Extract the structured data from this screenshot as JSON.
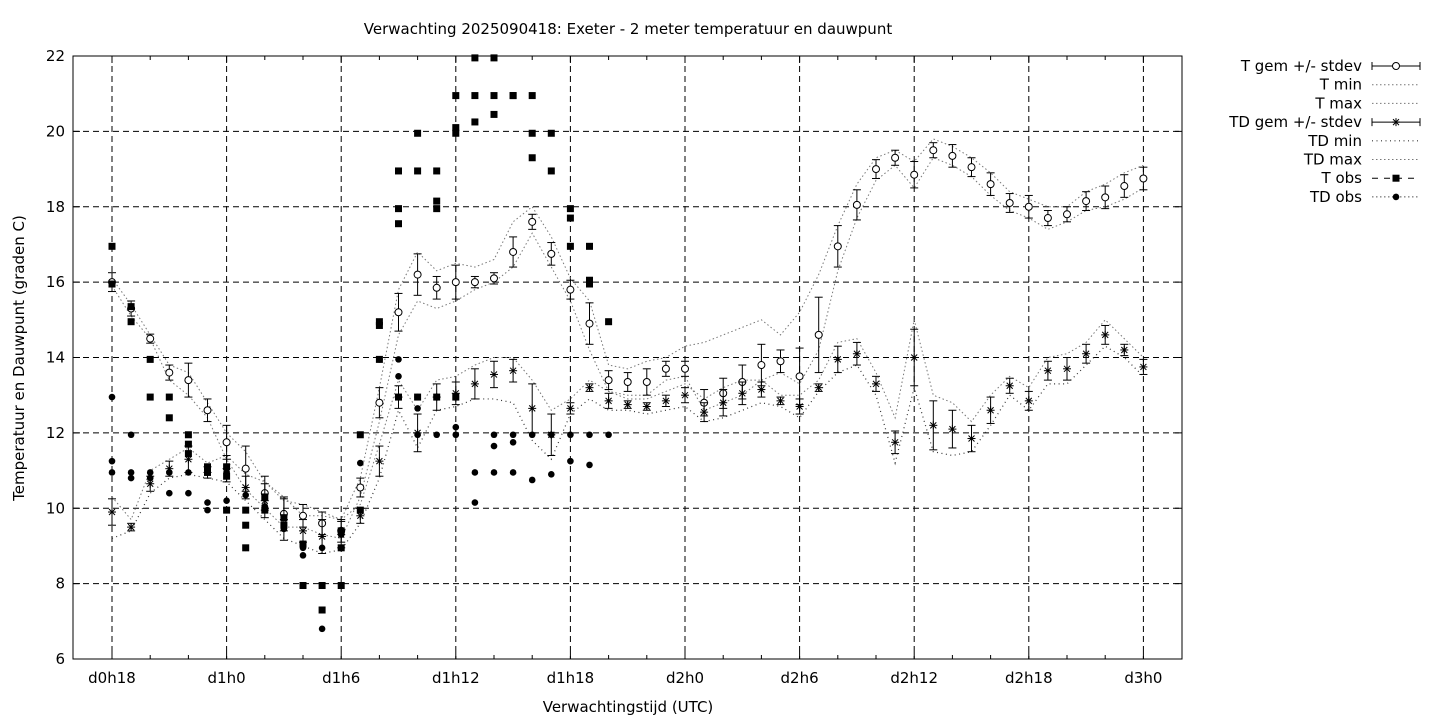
{
  "chart_data": {
    "type": "scatter",
    "title": "Verwachting 2025090418: Exeter - 2 meter temperatuur en dauwpunt",
    "xlabel": "Verwachtingstijd (UTC)",
    "ylabel": "Temperatuur en Dauwpunt (graden C)",
    "ylim": [
      6,
      22
    ],
    "xlim": [
      -1.5,
      27.5
    ],
    "x_unit": "hours since d0h18",
    "grid": true,
    "legend_position": "outside-right",
    "y_ticks": [
      6,
      8,
      10,
      12,
      14,
      16,
      18,
      20,
      22
    ],
    "x_ticks": [
      {
        "x": 0,
        "label": "d0h18"
      },
      {
        "x": 3,
        "label": "d1h0"
      },
      {
        "x": 6,
        "label": "d1h6"
      },
      {
        "x": 9,
        "label": "d1h12"
      },
      {
        "x": 12,
        "label": "d1h18"
      },
      {
        "x": 15,
        "label": "d2h0"
      },
      {
        "x": 18,
        "label": "d2h6"
      },
      {
        "x": 21,
        "label": "d2h12"
      },
      {
        "x": 24,
        "label": "d2h18"
      },
      {
        "x": 27,
        "label": "d3h0"
      }
    ],
    "legend": [
      "T gem +/- stdev",
      "T min",
      "T max",
      "TD gem +/- stdev",
      "TD min",
      "TD max",
      "T obs",
      "TD obs"
    ],
    "forecast_x": [
      0,
      0.5,
      1,
      1.5,
      2,
      2.5,
      3,
      3.5,
      4,
      4.5,
      5,
      5.5,
      6,
      6.5,
      7,
      7.5,
      8,
      8.5,
      9,
      9.5,
      10,
      10.5,
      11,
      11.5,
      12,
      12.5,
      13,
      13.5,
      14,
      14.5,
      15,
      15.5,
      16,
      16.5,
      17,
      17.5,
      18,
      18.5,
      19,
      19.5,
      20,
      20.5,
      21,
      21.5,
      22,
      22.5,
      23,
      23.5,
      24,
      24.5,
      25,
      25.5,
      26,
      26.5,
      27
    ],
    "series": [
      {
        "name": "T gem +/- stdev",
        "mean": [
          16.0,
          15.3,
          14.5,
          13.6,
          13.4,
          12.6,
          11.75,
          11.05,
          10.4,
          9.85,
          9.8,
          9.6,
          9.4,
          10.55,
          12.8,
          15.2,
          16.2,
          15.85,
          16.0,
          16.0,
          16.1,
          16.8,
          17.6,
          16.75,
          15.8,
          14.9,
          13.4,
          13.35,
          13.35,
          13.7,
          13.7,
          12.8,
          13.05,
          13.35,
          13.8,
          13.9,
          13.5,
          14.6,
          16.95,
          18.05,
          19.0,
          19.3,
          18.85,
          19.5,
          19.35,
          19.05,
          18.6,
          18.1,
          18.0,
          17.7,
          17.8,
          18.15,
          18.25,
          18.55,
          18.75
        ],
        "stdev": [
          0.25,
          0.2,
          0.12,
          0.2,
          0.45,
          0.3,
          0.45,
          0.6,
          0.45,
          0.45,
          0.3,
          0.3,
          0.3,
          0.25,
          0.4,
          0.5,
          0.55,
          0.3,
          0.45,
          0.15,
          0.15,
          0.4,
          0.2,
          0.3,
          0.25,
          0.55,
          0.25,
          0.25,
          0.35,
          0.2,
          0.2,
          0.35,
          0.4,
          0.45,
          0.55,
          0.3,
          0.75,
          1.0,
          0.55,
          0.4,
          0.25,
          0.2,
          0.35,
          0.2,
          0.3,
          0.25,
          0.3,
          0.25,
          0.3,
          0.2,
          0.2,
          0.25,
          0.3,
          0.3,
          0.3
        ]
      },
      {
        "name": "T min",
        "values": [
          15.9,
          15.1,
          14.5,
          13.4,
          13.0,
          12.4,
          11.3,
          10.5,
          10.0,
          9.5,
          9.5,
          9.3,
          9.2,
          10.3,
          12.3,
          14.6,
          15.5,
          15.3,
          15.5,
          15.8,
          16.0,
          16.4,
          17.3,
          16.4,
          15.5,
          14.2,
          13.1,
          13.0,
          13.0,
          13.4,
          13.5,
          12.6,
          12.8,
          13.0,
          13.4,
          13.6,
          13.3,
          14.2,
          16.3,
          17.7,
          18.7,
          19.1,
          18.5,
          19.3,
          19.1,
          18.8,
          18.3,
          17.9,
          17.7,
          17.4,
          17.6,
          17.9,
          18.0,
          18.2,
          18.5
        ]
      },
      {
        "name": "T max",
        "values": [
          16.1,
          15.4,
          14.6,
          13.8,
          13.6,
          12.8,
          12.0,
          11.5,
          10.7,
          10.2,
          10.1,
          9.9,
          9.7,
          10.8,
          13.2,
          15.8,
          16.8,
          16.3,
          16.5,
          16.4,
          16.6,
          17.6,
          18.0,
          17.2,
          16.1,
          15.5,
          13.8,
          13.7,
          13.9,
          14.0,
          14.3,
          14.4,
          14.6,
          14.8,
          15.0,
          14.6,
          15.2,
          16.2,
          17.5,
          18.6,
          19.3,
          19.5,
          19.2,
          19.8,
          19.6,
          19.3,
          18.9,
          18.4,
          18.2,
          18.0,
          18.0,
          18.4,
          18.6,
          18.9,
          19.1
        ]
      },
      {
        "name": "TD gem +/- stdev",
        "mean": [
          9.9,
          9.5,
          10.65,
          11.05,
          11.3,
          10.95,
          11.05,
          10.55,
          10.2,
          9.7,
          9.4,
          9.25,
          9.3,
          9.8,
          11.25,
          12.95,
          12.0,
          12.95,
          13.05,
          13.3,
          13.55,
          13.65,
          12.65,
          11.95,
          12.65,
          13.2,
          12.85,
          12.75,
          12.7,
          12.85,
          13.0,
          12.55,
          12.8,
          13.05,
          13.15,
          12.85,
          12.7,
          13.2,
          13.95,
          14.1,
          13.3,
          11.75,
          14.0,
          12.2,
          12.1,
          11.85,
          12.6,
          13.25,
          12.85,
          13.65,
          13.7,
          14.1,
          14.6,
          14.2,
          13.75
        ],
        "stdev": [
          0.35,
          0.1,
          0.2,
          0.2,
          0.35,
          0.15,
          0.35,
          0.3,
          0.45,
          0.55,
          0.3,
          0.45,
          0.35,
          0.2,
          0.4,
          0.3,
          0.5,
          0.35,
          0.3,
          0.4,
          0.35,
          0.3,
          0.65,
          0.55,
          0.15,
          0.1,
          0.2,
          0.1,
          0.1,
          0.15,
          0.2,
          0.25,
          0.35,
          0.3,
          0.2,
          0.1,
          0.2,
          0.1,
          0.35,
          0.3,
          0.2,
          0.3,
          0.75,
          0.65,
          0.5,
          0.35,
          0.35,
          0.2,
          0.25,
          0.25,
          0.3,
          0.25,
          0.25,
          0.15,
          0.2
        ]
      },
      {
        "name": "TD min",
        "values": [
          9.2,
          9.4,
          10.4,
          10.8,
          10.9,
          10.8,
          10.7,
          10.2,
          9.7,
          9.2,
          9.0,
          8.8,
          8.9,
          9.6,
          10.8,
          12.6,
          11.6,
          12.6,
          12.7,
          12.9,
          12.9,
          12.8,
          11.8,
          11.3,
          12.5,
          12.9,
          12.6,
          12.6,
          12.5,
          12.6,
          12.7,
          12.3,
          12.4,
          12.6,
          12.8,
          12.7,
          12.4,
          13.1,
          13.6,
          13.8,
          13.0,
          11.2,
          13.2,
          11.5,
          11.4,
          11.5,
          12.2,
          13.0,
          12.6,
          13.3,
          13.3,
          13.8,
          14.3,
          14.0,
          13.5
        ]
      },
      {
        "name": "TD max",
        "values": [
          10.3,
          9.7,
          11.0,
          11.3,
          11.6,
          11.2,
          11.4,
          10.9,
          10.7,
          10.3,
          9.8,
          9.8,
          9.7,
          10.1,
          11.7,
          13.4,
          12.6,
          13.4,
          13.5,
          13.8,
          14.0,
          14.0,
          13.4,
          12.6,
          12.9,
          13.4,
          13.1,
          12.9,
          12.9,
          13.1,
          13.3,
          12.9,
          13.2,
          13.4,
          13.4,
          13.0,
          13.0,
          13.4,
          14.4,
          14.5,
          13.6,
          12.4,
          15.0,
          13.0,
          12.8,
          12.3,
          13.0,
          13.5,
          13.2,
          14.0,
          14.1,
          14.4,
          15.0,
          14.5,
          14.0
        ]
      },
      {
        "name": "T obs",
        "points": [
          [
            0,
            16.95
          ],
          [
            0,
            15.95
          ],
          [
            0.5,
            15.35
          ],
          [
            0.5,
            14.95
          ],
          [
            1,
            13.95
          ],
          [
            1,
            12.95
          ],
          [
            1.5,
            12.95
          ],
          [
            1.5,
            12.4
          ],
          [
            2,
            11.95
          ],
          [
            2,
            11.7
          ],
          [
            2,
            11.45
          ],
          [
            2.5,
            11.1
          ],
          [
            2.5,
            10.95
          ],
          [
            3,
            11.1
          ],
          [
            3,
            10.85
          ],
          [
            3,
            9.95
          ],
          [
            3.5,
            9.95
          ],
          [
            3.5,
            9.55
          ],
          [
            3.5,
            8.95
          ],
          [
            4,
            10.3
          ],
          [
            4,
            9.95
          ],
          [
            4.5,
            9.75
          ],
          [
            4.5,
            9.55
          ],
          [
            5,
            9.05
          ],
          [
            5,
            7.95
          ],
          [
            5.5,
            7.95
          ],
          [
            5.5,
            7.3
          ],
          [
            6,
            9.4
          ],
          [
            6,
            8.95
          ],
          [
            6,
            7.95
          ],
          [
            6.5,
            11.95
          ],
          [
            6.5,
            9.95
          ],
          [
            7,
            14.95
          ],
          [
            7,
            14.85
          ],
          [
            7,
            13.95
          ],
          [
            7.5,
            18.95
          ],
          [
            7.5,
            17.95
          ],
          [
            7.5,
            17.55
          ],
          [
            7.5,
            12.95
          ],
          [
            8,
            19.95
          ],
          [
            8,
            18.95
          ],
          [
            8,
            12.95
          ],
          [
            8.5,
            18.95
          ],
          [
            8.5,
            18.15
          ],
          [
            8.5,
            17.95
          ],
          [
            8.5,
            12.95
          ],
          [
            9,
            20.95
          ],
          [
            9,
            20.1
          ],
          [
            9,
            19.95
          ],
          [
            9,
            12.95
          ],
          [
            9.5,
            21.95
          ],
          [
            9.5,
            20.95
          ],
          [
            9.5,
            20.25
          ],
          [
            10,
            21.95
          ],
          [
            10,
            20.95
          ],
          [
            10,
            20.45
          ],
          [
            10.5,
            20.95
          ],
          [
            10.5,
            20.95
          ],
          [
            11,
            20.95
          ],
          [
            11,
            19.95
          ],
          [
            11,
            19.3
          ],
          [
            11.5,
            19.95
          ],
          [
            11.5,
            18.95
          ],
          [
            12,
            17.95
          ],
          [
            12,
            17.7
          ],
          [
            12,
            16.95
          ],
          [
            12.5,
            16.95
          ],
          [
            12.5,
            16.05
          ],
          [
            12.5,
            15.95
          ],
          [
            13,
            14.95
          ]
        ]
      },
      {
        "name": "TD obs",
        "points": [
          [
            0,
            12.95
          ],
          [
            0,
            11.25
          ],
          [
            0,
            10.95
          ],
          [
            0.5,
            11.95
          ],
          [
            0.5,
            10.95
          ],
          [
            0.5,
            10.8
          ],
          [
            1,
            10.95
          ],
          [
            1,
            10.8
          ],
          [
            1.5,
            10.95
          ],
          [
            1.5,
            10.4
          ],
          [
            2,
            10.95
          ],
          [
            2,
            10.4
          ],
          [
            2.5,
            10.95
          ],
          [
            2.5,
            10.15
          ],
          [
            2.5,
            9.95
          ],
          [
            3,
            10.95
          ],
          [
            3,
            10.2
          ],
          [
            3.5,
            10.35
          ],
          [
            3.5,
            8.95
          ],
          [
            4,
            10.05
          ],
          [
            4.5,
            9.55
          ],
          [
            4.5,
            9.45
          ],
          [
            5,
            8.95
          ],
          [
            5,
            8.75
          ],
          [
            5.5,
            8.95
          ],
          [
            5.5,
            6.8
          ],
          [
            6,
            9.3
          ],
          [
            6,
            8.95
          ],
          [
            6.5,
            11.2
          ],
          [
            6.5,
            9.95
          ],
          [
            7,
            13.95
          ],
          [
            7,
            13.95
          ],
          [
            7.5,
            13.95
          ],
          [
            7.5,
            13.5
          ],
          [
            7.5,
            12.95
          ],
          [
            8,
            12.95
          ],
          [
            8,
            12.65
          ],
          [
            8,
            11.95
          ],
          [
            8.5,
            12.95
          ],
          [
            8.5,
            11.95
          ],
          [
            9,
            12.95
          ],
          [
            9,
            12.15
          ],
          [
            9,
            11.95
          ],
          [
            9.5,
            10.95
          ],
          [
            9.5,
            10.15
          ],
          [
            10,
            11.95
          ],
          [
            10,
            11.65
          ],
          [
            10,
            10.95
          ],
          [
            10.5,
            11.95
          ],
          [
            10.5,
            11.75
          ],
          [
            10.5,
            10.95
          ],
          [
            11,
            11.95
          ],
          [
            11,
            10.75
          ],
          [
            11.5,
            11.95
          ],
          [
            11.5,
            10.9
          ],
          [
            12,
            11.95
          ],
          [
            12,
            11.25
          ],
          [
            12.5,
            11.95
          ],
          [
            12.5,
            11.15
          ],
          [
            13,
            11.95
          ]
        ]
      }
    ]
  }
}
